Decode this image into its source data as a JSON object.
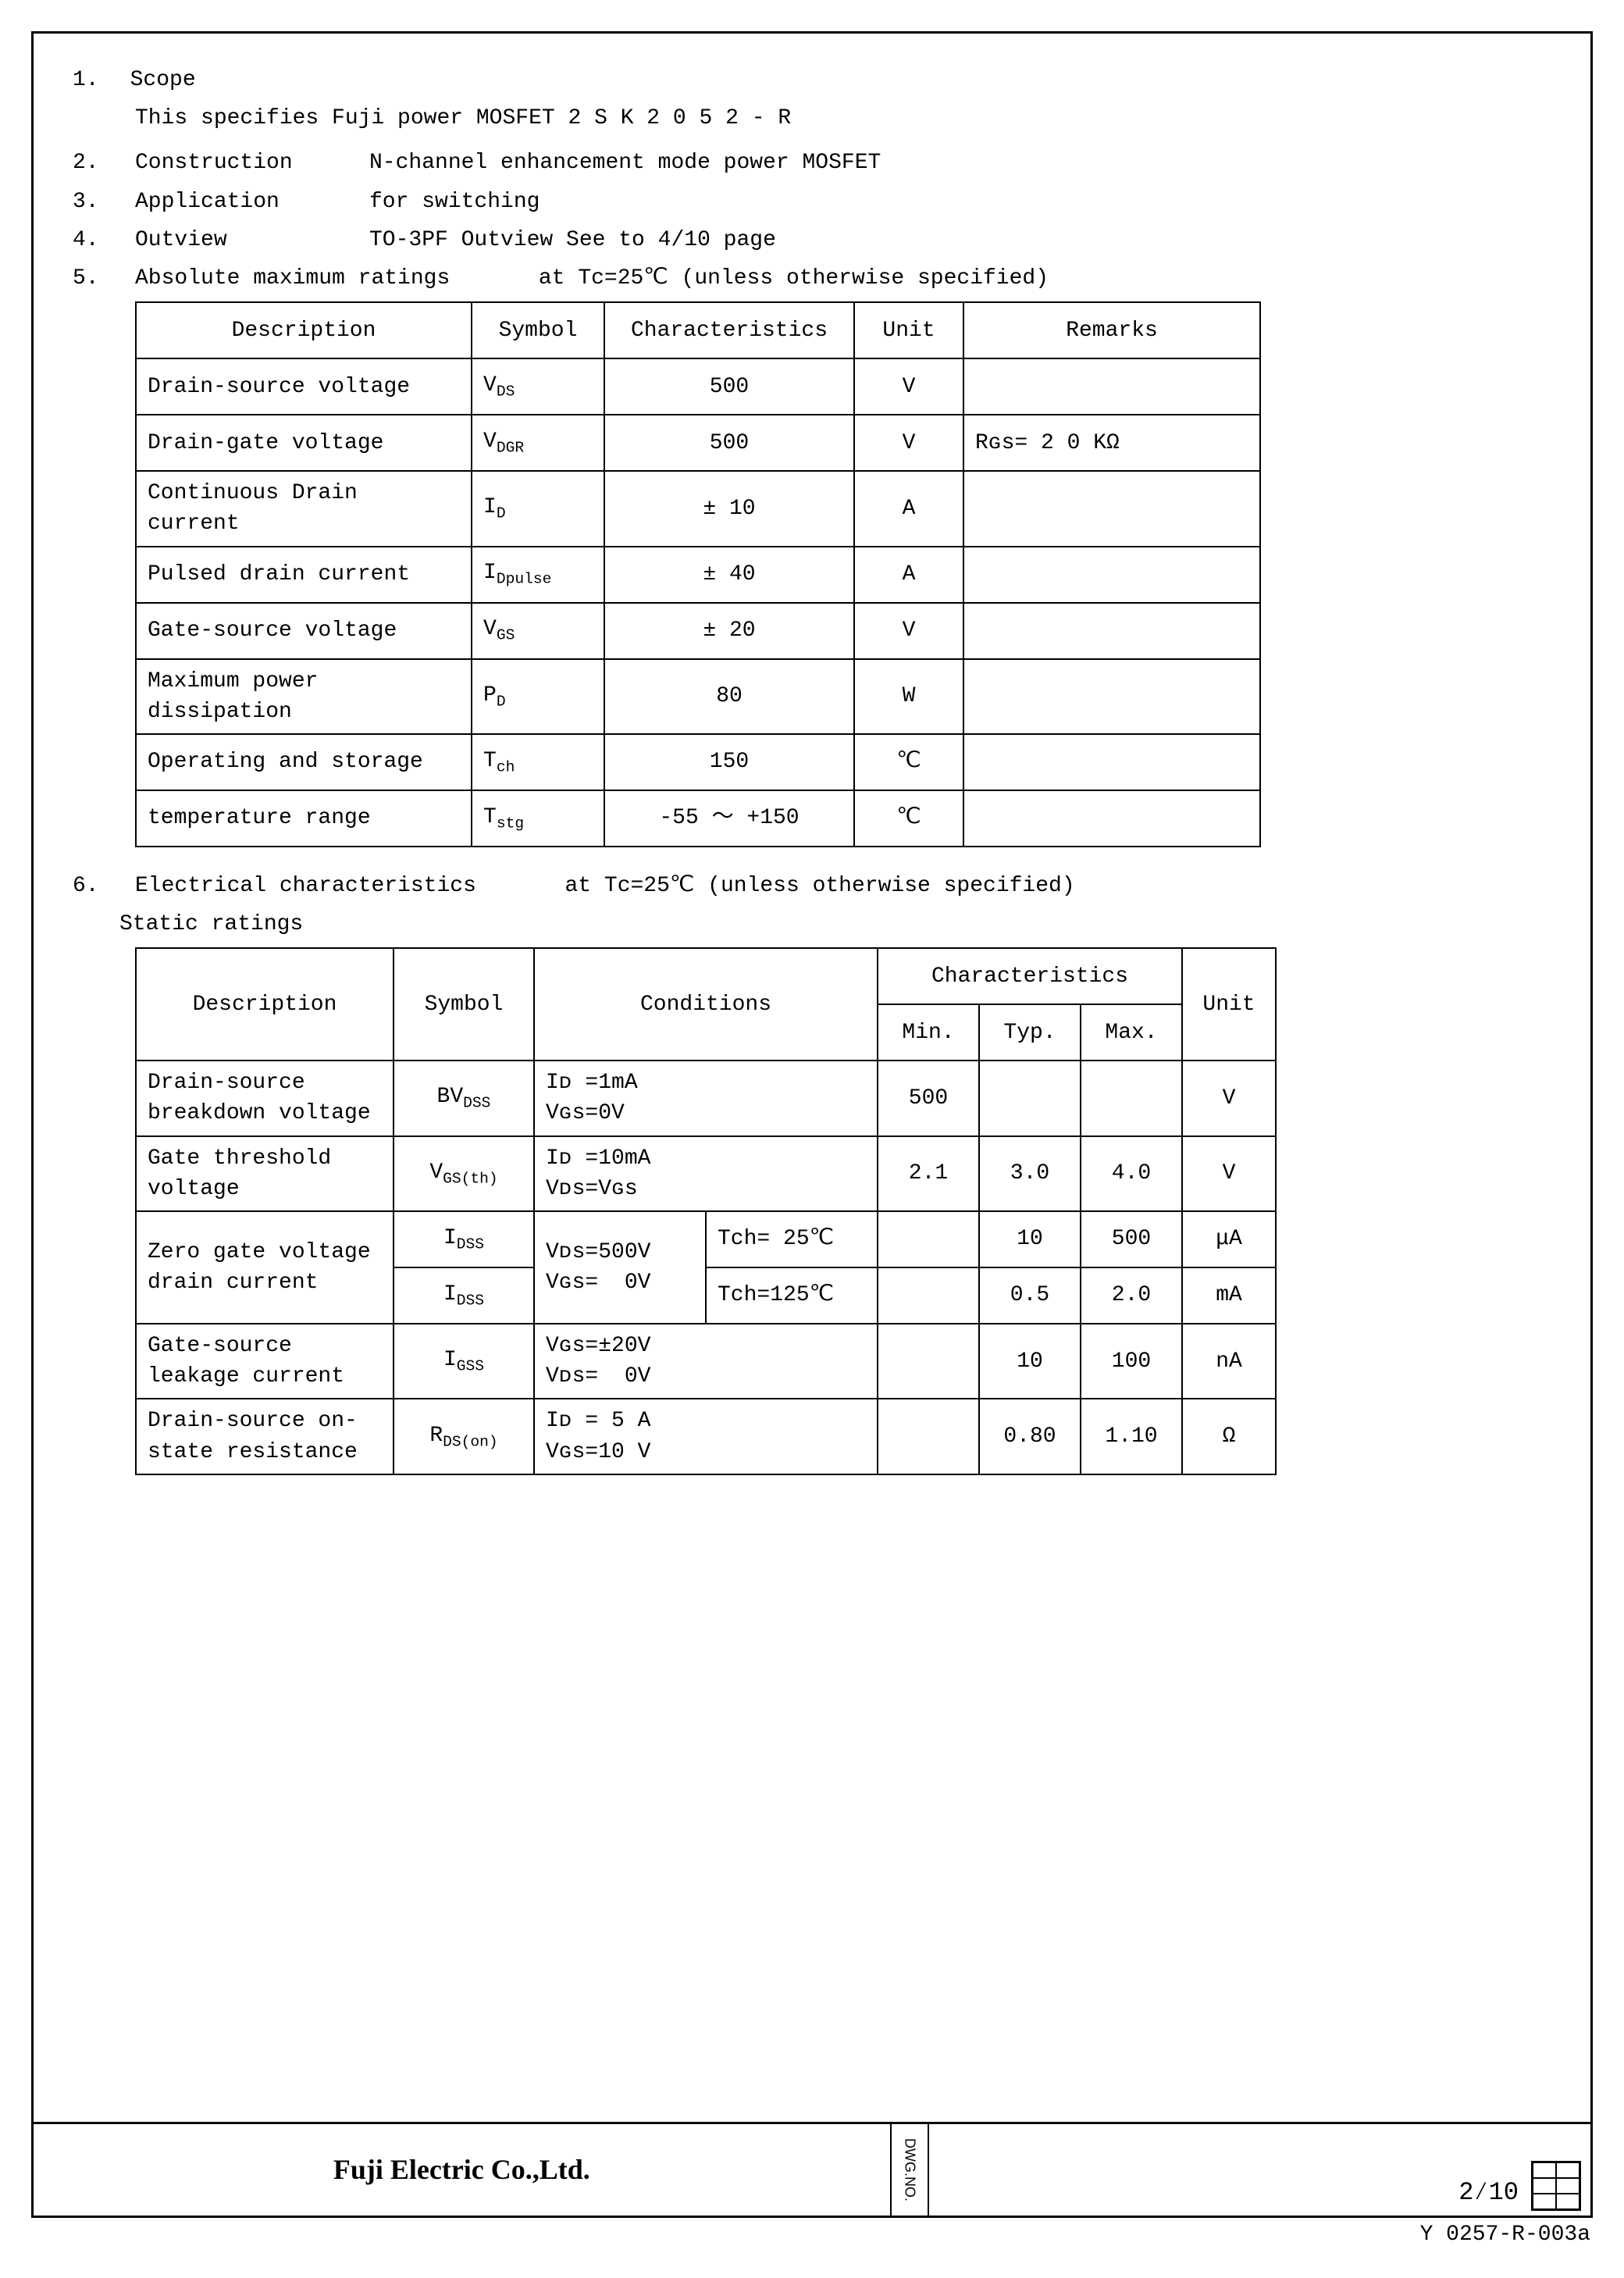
{
  "head": {
    "s1_num": "1.",
    "s1_label": "Scope",
    "s1_text": "This specifies Fuji power MOSFET  2 S K 2 0 5 2 - R",
    "s2_num": "2.",
    "s2_label": "Construction",
    "s2_text": "N-channel enhancement mode power MOSFET",
    "s3_num": "3.",
    "s3_label": "Application",
    "s3_text": "for switching",
    "s4_num": "4.",
    "s4_label": "Outview",
    "s4_text": "TO-3PF    Outview See to 4/10 page",
    "s5_num": "5.",
    "s5_label": "Absolute maximum ratings",
    "s5_cond": "at Tc=25℃  (unless otherwise specified)"
  },
  "t1": {
    "h_desc": "Description",
    "h_sym": "Symbol",
    "h_char": "Characteristics",
    "h_unit": "Unit",
    "h_rem": "Remarks",
    "rows": [
      {
        "desc": "Drain-source voltage",
        "sym": "V",
        "sub": "DS",
        "char": "500",
        "unit": "V",
        "rem": ""
      },
      {
        "desc": "Drain-gate voltage",
        "sym": "V",
        "sub": "DGR",
        "char": "500",
        "unit": "V",
        "rem": "Rɢs= 2 0 KΩ"
      },
      {
        "desc": "Continuous Drain current",
        "sym": "I",
        "sub": "D",
        "char": "±  10",
        "unit": "A",
        "rem": ""
      },
      {
        "desc": "Pulsed drain current",
        "sym": "I",
        "sub": "Dpulse",
        "char": "±  40",
        "unit": "A",
        "rem": ""
      },
      {
        "desc": "Gate-source voltage",
        "sym": "V",
        "sub": "GS",
        "char": "±  20",
        "unit": "V",
        "rem": ""
      },
      {
        "desc": "Maximum power dissipation",
        "sym": "P",
        "sub": "D",
        "char": "80",
        "unit": "W",
        "rem": ""
      },
      {
        "desc": "Operating and storage",
        "sym": "T",
        "sub": "ch",
        "char": "150",
        "unit": "℃",
        "rem": ""
      },
      {
        "desc": "temperature range",
        "sym": "T",
        "sub": "stg",
        "char": "-55  ～  +150",
        "unit": "℃",
        "rem": ""
      }
    ]
  },
  "s6": {
    "num": "6.",
    "label": "Electrical characteristics",
    "cond": "at Tc=25℃  (unless otherwise specified)",
    "sub": "Static ratings"
  },
  "t2": {
    "h_desc": "Description",
    "h_sym": "Symbol",
    "h_cond": "Conditions",
    "h_char": "Characteristics",
    "h_min": "Min.",
    "h_typ": "Typ.",
    "h_max": "Max.",
    "h_unit": "Unit",
    "r1_desc": "Drain-source breakdown voltage",
    "r1_sym": "BV",
    "r1_sub": "DSS",
    "r1_cond": "Iᴅ =1mA\nVɢs=0V",
    "r1_min": "500",
    "r1_typ": "",
    "r1_max": "",
    "r1_unit": "V",
    "r2_desc": "Gate threshold voltage",
    "r2_sym": "V",
    "r2_sub": "GS(th)",
    "r2_cond": "Iᴅ =10mA\nVᴅs=Vɢs",
    "r2_min": "2.1",
    "r2_typ": "3.0",
    "r2_max": "4.0",
    "r2_unit": "V",
    "r3_desc": "Zero gate voltage drain current",
    "r3_sym": "I",
    "r3_sub": "DSS",
    "r3_cond1": "Vᴅs=500V\nVɢs=  0V",
    "r3_cond2a": "Tch= 25℃",
    "r3a_min": "",
    "r3a_typ": "10",
    "r3a_max": "500",
    "r3a_unit": "μA",
    "r3b_sym": "I",
    "r3b_sub": "DSS",
    "r3_cond2b": "Tch=125℃",
    "r3b_min": "",
    "r3b_typ": "0.5",
    "r3b_max": "2.0",
    "r3b_unit": "mA",
    "r4_desc": "Gate-source leakage current",
    "r4_sym": "I",
    "r4_sub": "GSS",
    "r4_cond": "Vɢs=±20V\nVᴅs=  0V",
    "r4_min": "",
    "r4_typ": "10",
    "r4_max": "100",
    "r4_unit": "nA",
    "r5_desc": "Drain-source on-state resistance",
    "r5_sym": "R",
    "r5_sub": "DS(on)",
    "r5_cond": "Iᴅ = 5 A\nVɢs=10 V",
    "r5_min": "",
    "r5_typ": "0.80",
    "r5_max": "1.10",
    "r5_unit": "Ω"
  },
  "footer": {
    "company": "Fuji Electric Co.,Ltd.",
    "dwg": "DWG.NO.",
    "frac": "2⁄10",
    "code": "Y 0257-R-003a"
  }
}
